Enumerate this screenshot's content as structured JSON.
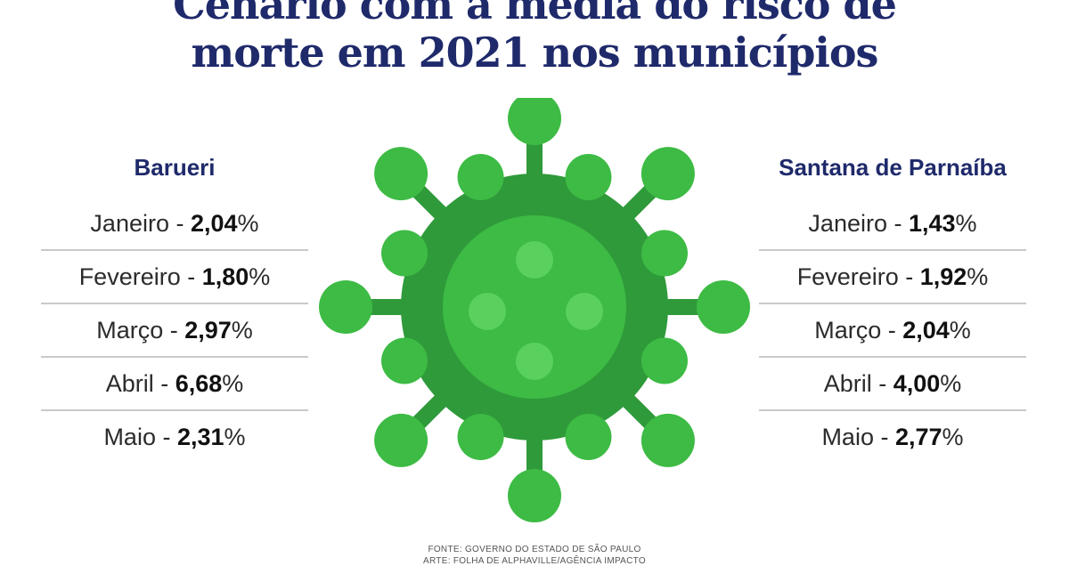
{
  "title": {
    "line1": "Cenário com a média do risco de",
    "line2": "morte em 2021 nos municípios"
  },
  "columns": [
    {
      "name": "Barueri",
      "rows": [
        {
          "month": "Janeiro",
          "value": "2,04"
        },
        {
          "month": "Fevereiro",
          "value": "1,80"
        },
        {
          "month": "Março",
          "value": "2,97"
        },
        {
          "month": "Abril",
          "value": "6,68"
        },
        {
          "month": "Maio",
          "value": "2,31"
        }
      ]
    },
    {
      "name": "Santana de Parnaíba",
      "rows": [
        {
          "month": "Janeiro",
          "value": "1,43"
        },
        {
          "month": "Fevereiro",
          "value": "1,92"
        },
        {
          "month": "Março",
          "value": "2,04"
        },
        {
          "month": "Abril",
          "value": "4,00"
        },
        {
          "month": "Maio",
          "value": "2,77"
        }
      ]
    }
  ],
  "separator": " - ",
  "percent_sign": "%",
  "footer": {
    "source": "FONTE: GOVERNO DO ESTADO DE SÃO PAULO",
    "art": "ARTE: FOLHA DE ALPHAVILLE/AGÊNCIA IMPACTO"
  },
  "colors": {
    "title": "#1f2a6b",
    "virus_dark": "#2f9a3a",
    "virus_mid": "#3dbb44",
    "virus_light": "#5ad15e"
  },
  "icon": "virus-illustration"
}
